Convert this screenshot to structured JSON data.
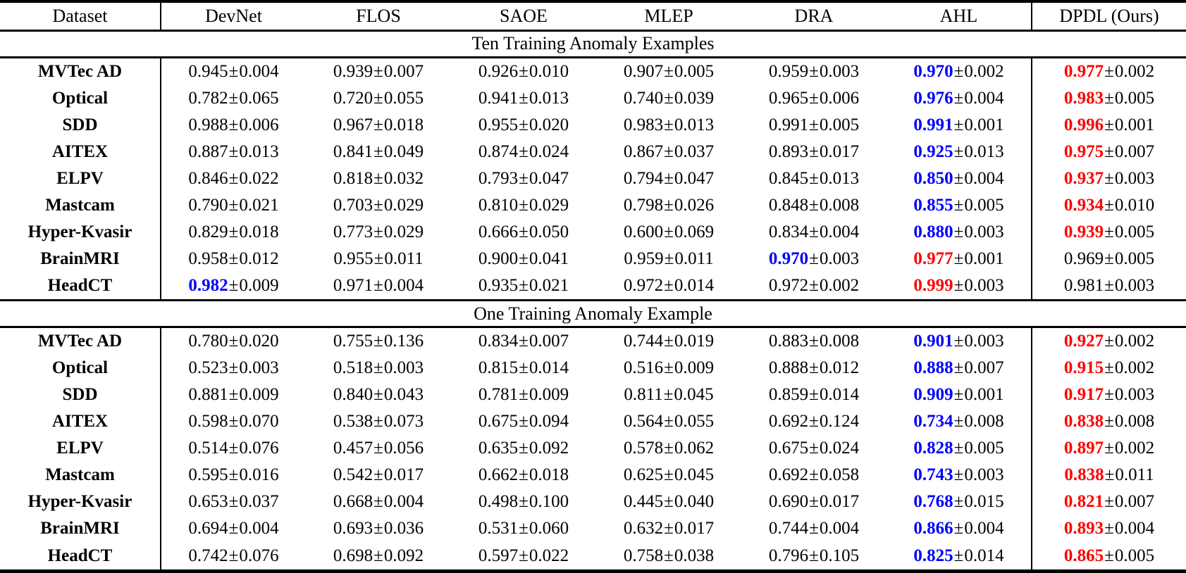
{
  "table": {
    "pm_sign": "±",
    "highlight_colors": {
      "best_red": "#ff0000",
      "second_best_blue": "#0000ff",
      "normal": "#000000"
    },
    "columns": [
      "Dataset",
      "DevNet",
      "FLOS",
      "SAOE",
      "MLEP",
      "DRA",
      "AHL",
      "DPDL (Ours)"
    ],
    "sections": [
      {
        "title": "Ten Training Anomaly Examples",
        "rows": [
          {
            "name": "MVTec AD",
            "cells": [
              [
                "0.945",
                "0.004"
              ],
              [
                "0.939",
                "0.007"
              ],
              [
                "0.926",
                "0.010"
              ],
              [
                "0.907",
                "0.005"
              ],
              [
                "0.959",
                "0.003"
              ],
              [
                "0.970",
                "0.002",
                "blue"
              ],
              [
                "0.977",
                "0.002",
                "red"
              ]
            ]
          },
          {
            "name": "Optical",
            "cells": [
              [
                "0.782",
                "0.065"
              ],
              [
                "0.720",
                "0.055"
              ],
              [
                "0.941",
                "0.013"
              ],
              [
                "0.740",
                "0.039"
              ],
              [
                "0.965",
                "0.006"
              ],
              [
                "0.976",
                "0.004",
                "blue"
              ],
              [
                "0.983",
                "0.005",
                "red"
              ]
            ]
          },
          {
            "name": "SDD",
            "cells": [
              [
                "0.988",
                "0.006"
              ],
              [
                "0.967",
                "0.018"
              ],
              [
                "0.955",
                "0.020"
              ],
              [
                "0.983",
                "0.013"
              ],
              [
                "0.991",
                "0.005"
              ],
              [
                "0.991",
                "0.001",
                "blue"
              ],
              [
                "0.996",
                "0.001",
                "red"
              ]
            ]
          },
          {
            "name": "AITEX",
            "cells": [
              [
                "0.887",
                "0.013"
              ],
              [
                "0.841",
                "0.049"
              ],
              [
                "0.874",
                "0.024"
              ],
              [
                "0.867",
                "0.037"
              ],
              [
                "0.893",
                "0.017"
              ],
              [
                "0.925",
                "0.013",
                "blue"
              ],
              [
                "0.975",
                "0.007",
                "red"
              ]
            ]
          },
          {
            "name": "ELPV",
            "cells": [
              [
                "0.846",
                "0.022"
              ],
              [
                "0.818",
                "0.032"
              ],
              [
                "0.793",
                "0.047"
              ],
              [
                "0.794",
                "0.047"
              ],
              [
                "0.845",
                "0.013"
              ],
              [
                "0.850",
                "0.004",
                "blue"
              ],
              [
                "0.937",
                "0.003",
                "red"
              ]
            ]
          },
          {
            "name": "Mastcam",
            "cells": [
              [
                "0.790",
                "0.021"
              ],
              [
                "0.703",
                "0.029"
              ],
              [
                "0.810",
                "0.029"
              ],
              [
                "0.798",
                "0.026"
              ],
              [
                "0.848",
                "0.008"
              ],
              [
                "0.855",
                "0.005",
                "blue"
              ],
              [
                "0.934",
                "0.010",
                "red"
              ]
            ]
          },
          {
            "name": "Hyper-Kvasir",
            "cells": [
              [
                "0.829",
                "0.018"
              ],
              [
                "0.773",
                "0.029"
              ],
              [
                "0.666",
                "0.050"
              ],
              [
                "0.600",
                "0.069"
              ],
              [
                "0.834",
                "0.004"
              ],
              [
                "0.880",
                "0.003",
                "blue"
              ],
              [
                "0.939",
                "0.005",
                "red"
              ]
            ]
          },
          {
            "name": "BrainMRI",
            "cells": [
              [
                "0.958",
                "0.012"
              ],
              [
                "0.955",
                "0.011"
              ],
              [
                "0.900",
                "0.041"
              ],
              [
                "0.959",
                "0.011"
              ],
              [
                "0.970",
                "0.003",
                "blue"
              ],
              [
                "0.977",
                "0.001",
                "red"
              ],
              [
                "0.969",
                "0.005"
              ]
            ]
          },
          {
            "name": "HeadCT",
            "cells": [
              [
                "0.982",
                "0.009",
                "blue"
              ],
              [
                "0.971",
                "0.004"
              ],
              [
                "0.935",
                "0.021"
              ],
              [
                "0.972",
                "0.014"
              ],
              [
                "0.972",
                "0.002"
              ],
              [
                "0.999",
                "0.003",
                "red"
              ],
              [
                "0.981",
                "0.003"
              ]
            ]
          }
        ]
      },
      {
        "title": "One Training Anomaly Example",
        "rows": [
          {
            "name": "MVTec AD",
            "cells": [
              [
                "0.780",
                "0.020"
              ],
              [
                "0.755",
                "0.136"
              ],
              [
                "0.834",
                "0.007"
              ],
              [
                "0.744",
                "0.019"
              ],
              [
                "0.883",
                "0.008"
              ],
              [
                "0.901",
                "0.003",
                "blue"
              ],
              [
                "0.927",
                "0.002",
                "red"
              ]
            ]
          },
          {
            "name": "Optical",
            "cells": [
              [
                "0.523",
                "0.003"
              ],
              [
                "0.518",
                "0.003"
              ],
              [
                "0.815",
                "0.014"
              ],
              [
                "0.516",
                "0.009"
              ],
              [
                "0.888",
                "0.012"
              ],
              [
                "0.888",
                "0.007",
                "blue"
              ],
              [
                "0.915",
                "0.002",
                "red"
              ]
            ]
          },
          {
            "name": "SDD",
            "cells": [
              [
                "0.881",
                "0.009"
              ],
              [
                "0.840",
                "0.043"
              ],
              [
                "0.781",
                "0.009"
              ],
              [
                "0.811",
                "0.045"
              ],
              [
                "0.859",
                "0.014"
              ],
              [
                "0.909",
                "0.001",
                "blue"
              ],
              [
                "0.917",
                "0.003",
                "red"
              ]
            ]
          },
          {
            "name": "AITEX",
            "cells": [
              [
                "0.598",
                "0.070"
              ],
              [
                "0.538",
                "0.073"
              ],
              [
                "0.675",
                "0.094"
              ],
              [
                "0.564",
                "0.055"
              ],
              [
                "0.692",
                "0.124"
              ],
              [
                "0.734",
                "0.008",
                "blue"
              ],
              [
                "0.838",
                "0.008",
                "red"
              ]
            ]
          },
          {
            "name": "ELPV",
            "cells": [
              [
                "0.514",
                "0.076"
              ],
              [
                "0.457",
                "0.056"
              ],
              [
                "0.635",
                "0.092"
              ],
              [
                "0.578",
                "0.062"
              ],
              [
                "0.675",
                "0.024"
              ],
              [
                "0.828",
                "0.005",
                "blue"
              ],
              [
                "0.897",
                "0.002",
                "red"
              ]
            ]
          },
          {
            "name": "Mastcam",
            "cells": [
              [
                "0.595",
                "0.016"
              ],
              [
                "0.542",
                "0.017"
              ],
              [
                "0.662",
                "0.018"
              ],
              [
                "0.625",
                "0.045"
              ],
              [
                "0.692",
                "0.058"
              ],
              [
                "0.743",
                "0.003",
                "blue"
              ],
              [
                "0.838",
                "0.011",
                "red"
              ]
            ]
          },
          {
            "name": "Hyper-Kvasir",
            "cells": [
              [
                "0.653",
                "0.037"
              ],
              [
                "0.668",
                "0.004"
              ],
              [
                "0.498",
                "0.100"
              ],
              [
                "0.445",
                "0.040"
              ],
              [
                "0.690",
                "0.017"
              ],
              [
                "0.768",
                "0.015",
                "blue"
              ],
              [
                "0.821",
                "0.007",
                "red"
              ]
            ]
          },
          {
            "name": "BrainMRI",
            "cells": [
              [
                "0.694",
                "0.004"
              ],
              [
                "0.693",
                "0.036"
              ],
              [
                "0.531",
                "0.060"
              ],
              [
                "0.632",
                "0.017"
              ],
              [
                "0.744",
                "0.004"
              ],
              [
                "0.866",
                "0.004",
                "blue"
              ],
              [
                "0.893",
                "0.004",
                "red"
              ]
            ]
          },
          {
            "name": "HeadCT",
            "cells": [
              [
                "0.742",
                "0.076"
              ],
              [
                "0.698",
                "0.092"
              ],
              [
                "0.597",
                "0.022"
              ],
              [
                "0.758",
                "0.038"
              ],
              [
                "0.796",
                "0.105"
              ],
              [
                "0.825",
                "0.014",
                "blue"
              ],
              [
                "0.865",
                "0.005",
                "red"
              ]
            ]
          }
        ]
      }
    ]
  }
}
